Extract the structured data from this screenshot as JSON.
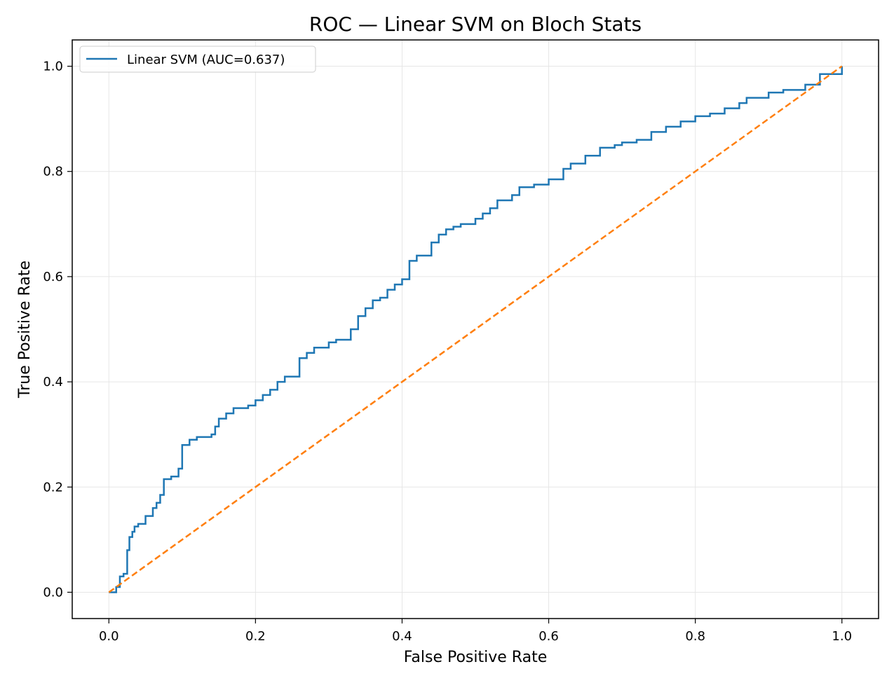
{
  "chart_data": {
    "type": "line",
    "title": "ROC — Linear SVM on Bloch Stats",
    "xlabel": "False Positive Rate",
    "ylabel": "True Positive Rate",
    "xlim": [
      -0.05,
      1.05
    ],
    "ylim": [
      -0.05,
      1.05
    ],
    "xticks": [
      0.0,
      0.2,
      0.4,
      0.6,
      0.8,
      1.0
    ],
    "yticks": [
      0.0,
      0.2,
      0.4,
      0.6,
      0.8,
      1.0
    ],
    "xtick_labels": [
      "0.0",
      "0.2",
      "0.4",
      "0.6",
      "0.8",
      "1.0"
    ],
    "ytick_labels": [
      "0.0",
      "0.2",
      "0.4",
      "0.6",
      "0.8",
      "1.0"
    ],
    "grid": true,
    "legend_position": "top-left",
    "legend_label": "Linear SVM (AUC=0.637)",
    "series": [
      {
        "name": "Linear SVM (AUC=0.637)",
        "color": "#1f77b4",
        "style": "step",
        "x": [
          0.0,
          0.01,
          0.015,
          0.02,
          0.025,
          0.028,
          0.032,
          0.035,
          0.04,
          0.05,
          0.06,
          0.065,
          0.07,
          0.075,
          0.085,
          0.095,
          0.1,
          0.11,
          0.12,
          0.14,
          0.145,
          0.15,
          0.16,
          0.17,
          0.19,
          0.2,
          0.21,
          0.22,
          0.23,
          0.24,
          0.26,
          0.27,
          0.28,
          0.3,
          0.31,
          0.33,
          0.34,
          0.35,
          0.36,
          0.37,
          0.38,
          0.39,
          0.4,
          0.41,
          0.42,
          0.44,
          0.45,
          0.46,
          0.47,
          0.48,
          0.5,
          0.51,
          0.52,
          0.53,
          0.55,
          0.56,
          0.58,
          0.6,
          0.62,
          0.63,
          0.65,
          0.67,
          0.69,
          0.7,
          0.72,
          0.74,
          0.76,
          0.78,
          0.8,
          0.82,
          0.84,
          0.86,
          0.87,
          0.9,
          0.92,
          0.95,
          0.97,
          1.0
        ],
        "y": [
          0.0,
          0.01,
          0.03,
          0.035,
          0.08,
          0.105,
          0.115,
          0.125,
          0.13,
          0.145,
          0.16,
          0.17,
          0.185,
          0.215,
          0.22,
          0.235,
          0.28,
          0.29,
          0.295,
          0.3,
          0.315,
          0.33,
          0.34,
          0.35,
          0.355,
          0.365,
          0.375,
          0.385,
          0.4,
          0.41,
          0.445,
          0.455,
          0.465,
          0.475,
          0.48,
          0.5,
          0.525,
          0.54,
          0.555,
          0.56,
          0.575,
          0.585,
          0.595,
          0.63,
          0.64,
          0.665,
          0.68,
          0.69,
          0.695,
          0.7,
          0.71,
          0.72,
          0.73,
          0.745,
          0.755,
          0.77,
          0.775,
          0.785,
          0.805,
          0.815,
          0.83,
          0.845,
          0.85,
          0.855,
          0.86,
          0.875,
          0.885,
          0.895,
          0.905,
          0.91,
          0.92,
          0.93,
          0.94,
          0.95,
          0.955,
          0.965,
          0.985,
          1.0
        ]
      },
      {
        "color": "#ff7f0e",
        "style": "dashed",
        "x": [
          0.0,
          1.0
        ],
        "y": [
          0.0,
          1.0
        ]
      }
    ]
  }
}
